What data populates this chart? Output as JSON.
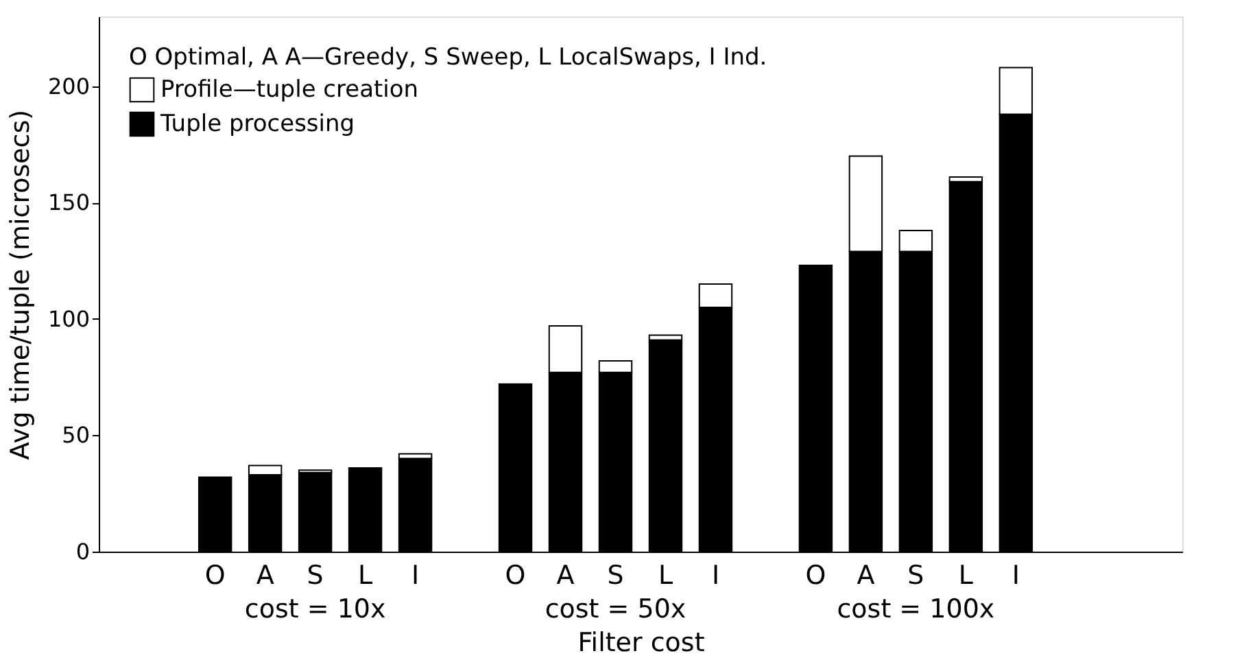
{
  "chart_data": {
    "type": "bar",
    "stacked": true,
    "xlabel": "Filter cost",
    "ylabel": "Avg time/tuple (microsecs)",
    "legend_title": "O Optimal, A A—Greedy, S Sweep, L LocalSwaps, I Ind.",
    "categories": [
      null,
      null,
      "O",
      "A",
      "S",
      "L",
      "I",
      null,
      "O",
      "A",
      "S",
      "L",
      "I",
      null,
      "O",
      "A",
      "S",
      "L",
      "I",
      null,
      null,
      null
    ],
    "series": [
      {
        "name": "Tuple processing",
        "color": "#000000",
        "values": [
          null,
          null,
          32,
          33,
          34,
          36,
          40,
          null,
          72,
          77,
          77,
          91,
          105,
          null,
          123,
          129,
          129,
          159,
          188,
          null,
          null,
          null
        ]
      },
      {
        "name": "Profile—tuple creation",
        "color": "#ffffff",
        "values": [
          null,
          null,
          null,
          4,
          1,
          null,
          2,
          null,
          null,
          20,
          5,
          2,
          10,
          null,
          null,
          41,
          9,
          2,
          20,
          null,
          null,
          null
        ]
      }
    ],
    "annotations": [
      "cost = 10x",
      "cost = 50x",
      "cost = 100x"
    ],
    "ylim": [
      0,
      230
    ],
    "yticks": [
      0,
      50,
      100,
      150,
      200
    ],
    "grid": false,
    "legend": "top left"
  }
}
